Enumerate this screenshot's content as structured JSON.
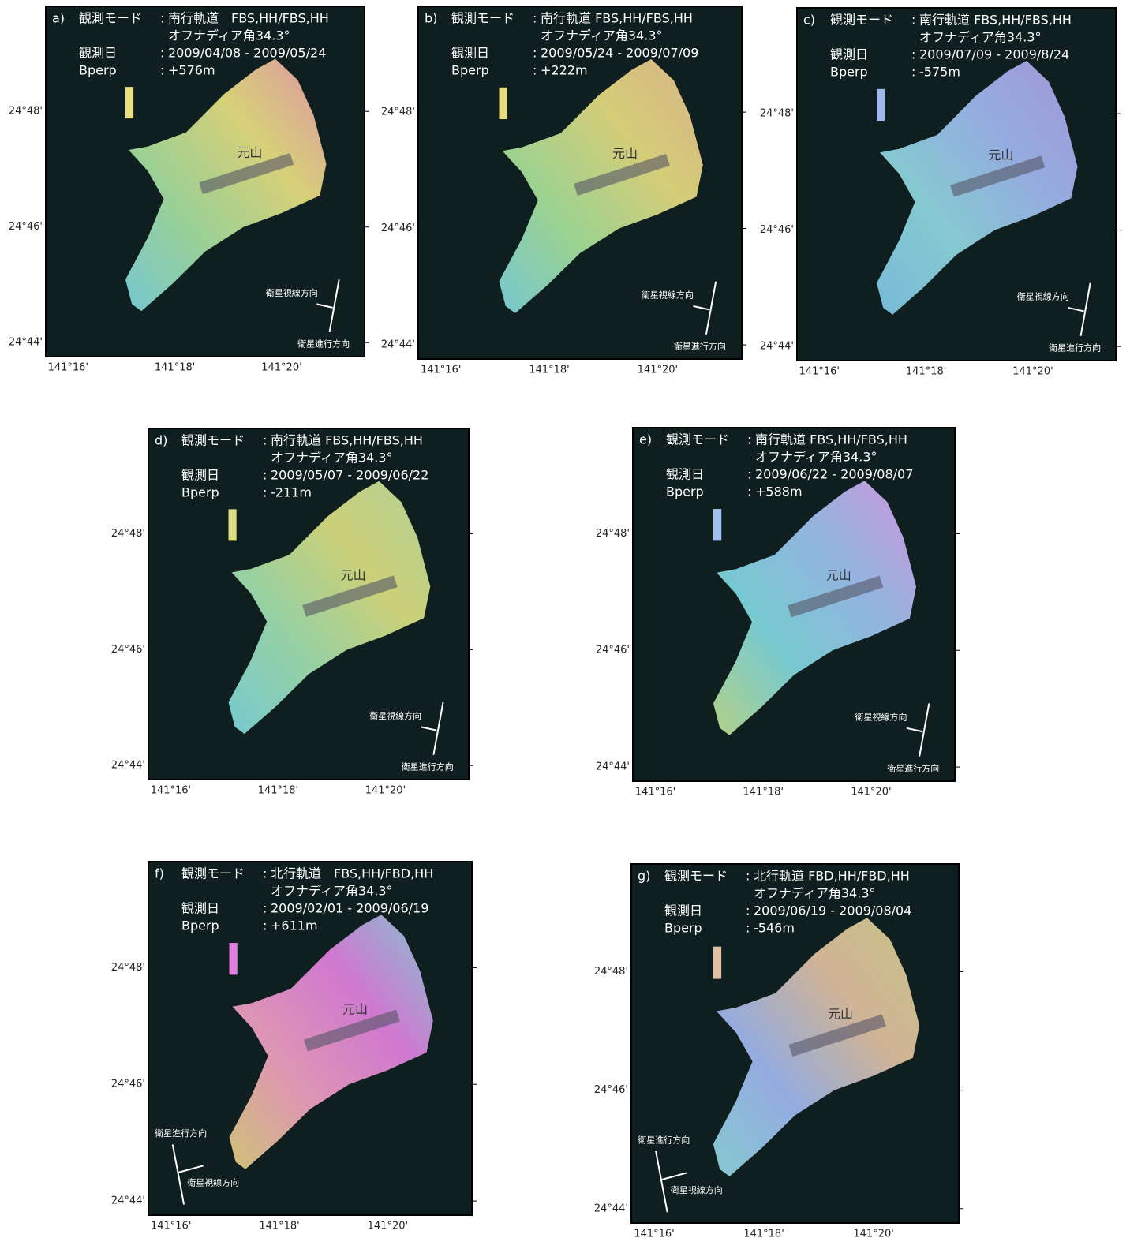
{
  "panels": [
    {
      "label": "a)",
      "mode_label": "観測モード",
      "sep": ":",
      "mode": "南行軌道　FBS,HH/FBS,HH",
      "angle": "オフナディア角34.3°",
      "date_label": "観測日",
      "dates": "2009/04/08 - 2009/05/24",
      "bperp_label": "Bperp",
      "bperp": "+576m",
      "place": "元山",
      "look": "衛星視線方向",
      "flight": "衛星進行方向",
      "lat_ticks": [
        "24°48'",
        "24°46'",
        "24°44'"
      ],
      "lon_ticks": [
        "141°16'",
        "141°18'",
        "141°20'"
      ]
    },
    {
      "label": "b)",
      "mode_label": "観測モード",
      "sep": ":",
      "mode": "南行軌道 FBS,HH/FBS,HH",
      "angle": "オフナディア角34.3°",
      "date_label": "観測日",
      "dates": "2009/05/24 - 2009/07/09",
      "bperp_label": "Bperp",
      "bperp": "+222m",
      "place": "元山",
      "look": "衛星視線方向",
      "flight": "衛星進行方向",
      "lat_ticks": [
        "24°48'",
        "24°46'",
        "24°44'"
      ],
      "lon_ticks": [
        "141°16'",
        "141°18'",
        "141°20'"
      ]
    },
    {
      "label": "c)",
      "mode_label": "観測モード",
      "sep": ":",
      "mode": "南行軌道 FBS,HH/FBS,HH",
      "angle": "オフナディア角34.3°",
      "date_label": "観測日",
      "dates": "2009/07/09 - 2009/8/24",
      "bperp_label": "Bperp",
      "bperp": "-575m",
      "place": "元山",
      "look": "衛星視線方向",
      "flight": "衛星進行方向",
      "lat_ticks": [
        "24°48'",
        "24°46'",
        "24°44'"
      ],
      "lon_ticks": [
        "141°16'",
        "141°18'",
        "141°20'"
      ]
    },
    {
      "label": "d)",
      "mode_label": "観測モード",
      "sep": ":",
      "mode": "南行軌道 FBS,HH/FBS,HH",
      "angle": "オフナディア角34.3°",
      "date_label": "観測日",
      "dates": "2009/05/07 - 2009/06/22",
      "bperp_label": "Bperp",
      "bperp": "-211m",
      "place": "元山",
      "look": "衛星視線方向",
      "flight": "衛星進行方向",
      "lat_ticks": [
        "24°48'",
        "24°46'",
        "24°44'"
      ],
      "lon_ticks": [
        "141°16'",
        "141°18'",
        "141°20'"
      ]
    },
    {
      "label": "e)",
      "mode_label": "観測モード",
      "sep": ":",
      "mode": "南行軌道 FBS,HH/FBS,HH",
      "angle": "オフナディア角34.3°",
      "date_label": "観測日",
      "dates": "2009/06/22 - 2009/08/07",
      "bperp_label": "Bperp",
      "bperp": "+588m",
      "place": "元山",
      "look": "衛星視線方向",
      "flight": "衛星進行方向",
      "lat_ticks": [
        "24°48'",
        "24°46'",
        "24°44'"
      ],
      "lon_ticks": [
        "141°16'",
        "141°18'",
        "141°20'"
      ]
    },
    {
      "label": "f)",
      "mode_label": "観測モード",
      "sep": ":",
      "mode": "北行軌道　FBS,HH/FBD,HH",
      "angle": "オフナディア角34.3°",
      "date_label": "観測日",
      "dates": "2009/02/01 - 2009/06/19",
      "bperp_label": "Bperp",
      "bperp": "+611m",
      "place": "元山",
      "look": "衛星視線方向",
      "flight": "衛星進行方向",
      "lat_ticks": [
        "24°48'",
        "24°46'",
        "24°44'"
      ],
      "lon_ticks": [
        "141°16'",
        "141°18'",
        "141°20'"
      ]
    },
    {
      "label": "g)",
      "mode_label": "観測モード",
      "sep": ":",
      "mode": "北行軌道 FBD,HH/FBD,HH",
      "angle": "オフナディア角34.3°",
      "date_label": "観測日",
      "dates": "2009/06/19 - 2009/08/04",
      "bperp_label": "Bperp",
      "bperp": "-546m",
      "place": "元山",
      "look": "衛星視線方向",
      "flight": "衛星進行方向",
      "lat_ticks": [
        "24°48'",
        "24°46'",
        "24°44'"
      ],
      "lon_ticks": [
        "141°16'",
        "141°18'",
        "141°20'"
      ]
    }
  ]
}
